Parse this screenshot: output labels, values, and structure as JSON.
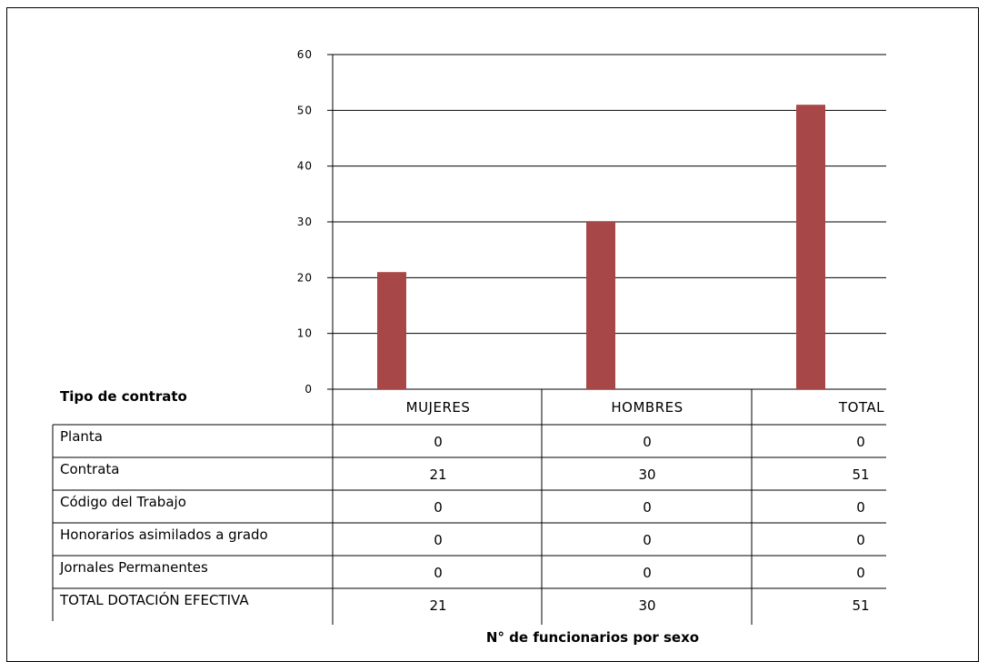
{
  "chart_data": {
    "type": "bar",
    "categories": [
      "MUJERES",
      "HOMBRES",
      "TOTAL"
    ],
    "values": [
      21,
      30,
      51
    ],
    "ylim": [
      0,
      60
    ],
    "yticks": [
      0,
      10,
      20,
      30,
      40,
      50,
      60
    ],
    "grid": true,
    "bar_color": "#A84747",
    "xlabel": "N° de funcionarios por sexo",
    "ylabel": ""
  },
  "table": {
    "header_label": "Tipo de contrato",
    "columns": [
      "MUJERES",
      "HOMBRES",
      "TOTAL"
    ],
    "rows": [
      {
        "label": "Planta",
        "values": [
          "0",
          "0",
          "0"
        ]
      },
      {
        "label": "Contrata",
        "values": [
          "21",
          "30",
          "51"
        ]
      },
      {
        "label": "Código del Trabajo",
        "values": [
          "0",
          "0",
          "0"
        ]
      },
      {
        "label": "Honorarios asimilados a grado",
        "values": [
          "0",
          "0",
          "0"
        ]
      },
      {
        "label": "Jornales Permanentes",
        "values": [
          "0",
          "0",
          "0"
        ]
      },
      {
        "label": "TOTAL DOTACIÓN EFECTIVA",
        "values": [
          "21",
          "30",
          "51"
        ]
      }
    ]
  }
}
